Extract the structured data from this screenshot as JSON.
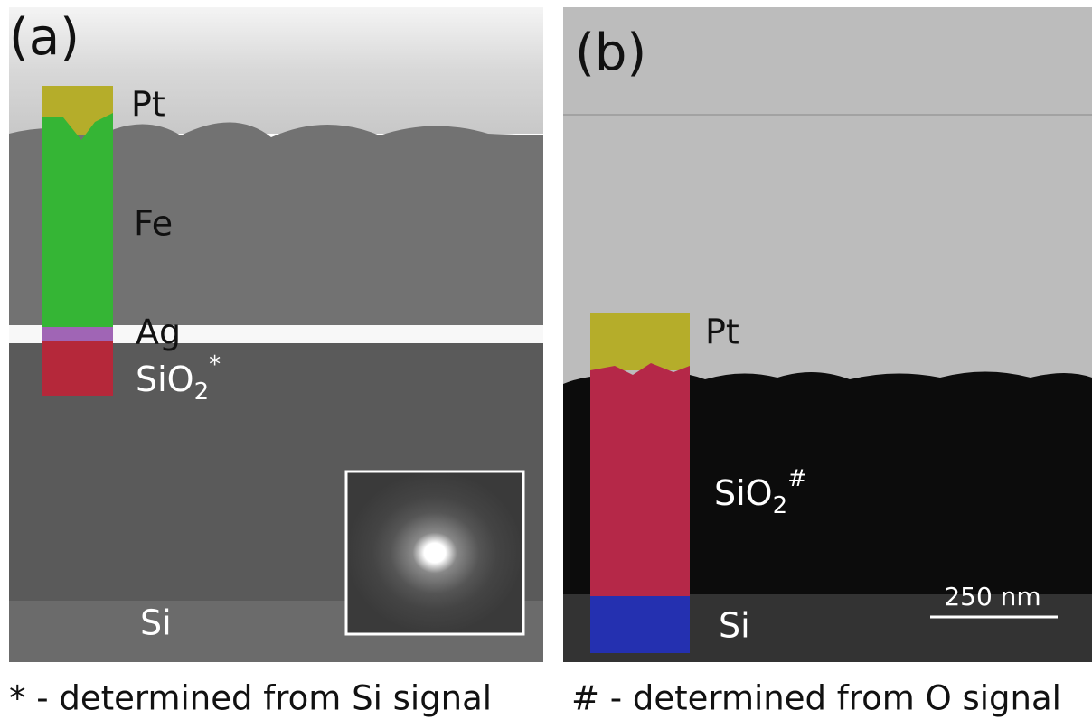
{
  "panel_a": {
    "tag": "(a)",
    "layers": {
      "pt": "Pt",
      "fe": "Fe",
      "ag": "Ag",
      "sio2": {
        "base": "SiO",
        "sub": "2",
        "sup": "*"
      },
      "si": "Si"
    }
  },
  "panel_b": {
    "tag": "(b)",
    "layers": {
      "pt": "Pt",
      "sio2": {
        "base": "SiO",
        "sub": "2",
        "sup": "#"
      },
      "si": "Si"
    },
    "scale_bar": "250 nm"
  },
  "footnotes": [
    "* - determined from Si signal",
    "# - determined from O signal"
  ]
}
